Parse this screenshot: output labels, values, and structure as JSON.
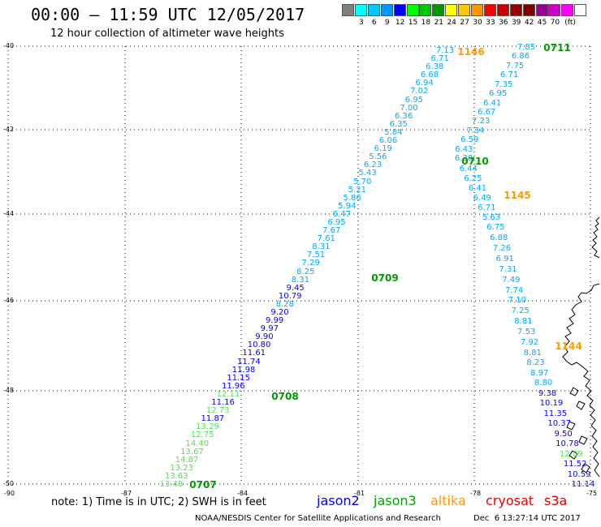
{
  "title": "00:00 – 11:59 UTC 12/05/2017",
  "subtitle": "12 hour collection of altimeter wave heights",
  "color_scale": {
    "unit": "(ft)",
    "colors": [
      "#7f7f7f",
      "#00ffff",
      "#00c8ff",
      "#0096ff",
      "#0000ff",
      "#00ff00",
      "#00c800",
      "#009600",
      "#ffff00",
      "#ffc800",
      "#ff9600",
      "#ff0000",
      "#c80000",
      "#960000",
      "#7f0000",
      "#960096",
      "#c800c8",
      "#ff00ff",
      "#ffffff"
    ],
    "labels": [
      "3",
      "6",
      "9",
      "12",
      "15",
      "18",
      "21",
      "24",
      "27",
      "30",
      "33",
      "36",
      "39",
      "42",
      "45",
      "70"
    ]
  },
  "axes": {
    "lat_labels": [
      "-40",
      "-42",
      "-44",
      "-46",
      "-48",
      "-50"
    ],
    "lon_labels": [
      "-90",
      "-87",
      "-84",
      "-81",
      "-78",
      "-75"
    ]
  },
  "note": "note: 1) Time is in UTC; 2) SWH is in feet",
  "legend": [
    {
      "label": "jason2",
      "color": "#0000dd"
    },
    {
      "label": "jason3",
      "color": "#00a000"
    },
    {
      "label": "altika",
      "color": "#ff9900"
    },
    {
      "label": "cryosat",
      "color": "#ee0000"
    },
    {
      "label": "s3a",
      "color": "#cc0000"
    }
  ],
  "credit": "NOAA/NESDIS Center for Satellite Applications and Research",
  "generated": "Dec  6 13:27:14 UTC 2017",
  "track_1_values": [
    "13.48",
    "13.63",
    "13.23",
    "14.87",
    "13.67",
    "14.40",
    "12.75",
    "13.29",
    "11.87",
    "12.73",
    "11.16",
    "12.11",
    "11.96",
    "11.15",
    "11.98",
    "11.74",
    "11.61",
    "10.80",
    "9.90",
    "9.97",
    "9.99",
    "9.20",
    "8.28",
    "10.79",
    "9.45",
    "8.31",
    "8.25",
    "7.29",
    "7.51",
    "8.31",
    "7.61",
    "7.67",
    "6.95",
    "6.47",
    "5.94",
    "5.86",
    "5.21",
    "5.70",
    "5.43",
    "6.23",
    "5.56",
    "6.19",
    "6.06",
    "5.84",
    "6.35",
    "6.36",
    "7.00",
    "6.95",
    "7.02",
    "6.94",
    "6.68",
    "6.38",
    "6.71",
    "7.13"
  ],
  "track_2_values": [
    "7.85",
    "6.86",
    "7.75",
    "6.71",
    "7.35",
    "6.95",
    "6.41",
    "6.67",
    "7.23",
    "7.34",
    "6.59",
    "6.43",
    "6.38",
    "6.44",
    "6.25",
    "6.41",
    "6.49",
    "6.71",
    "5.63",
    "6.75",
    "6.88",
    "7.26",
    "6.91",
    "7.31",
    "7.49",
    "7.74",
    "7.10",
    "7.25",
    "8.81",
    "7.53",
    "7.92",
    "8.81",
    "8.23",
    "8.97",
    "8.80",
    "9.38",
    "10.19",
    "11.35",
    "10.37",
    "9.50",
    "10.78",
    "12.09",
    "11.52",
    "10.59",
    "11.14"
  ],
  "time_labels": [
    {
      "text": "0707",
      "color": "#009900"
    },
    {
      "text": "0708",
      "color": "#009900"
    },
    {
      "text": "0709",
      "color": "#009900"
    },
    {
      "text": "0710",
      "color": "#009900"
    },
    {
      "text": "0711",
      "color": "#009900"
    },
    {
      "text": "1146",
      "color": "#ff9900"
    },
    {
      "text": "1145",
      "color": "#ff9900"
    },
    {
      "text": "1144",
      "color": "#ff9900"
    }
  ]
}
